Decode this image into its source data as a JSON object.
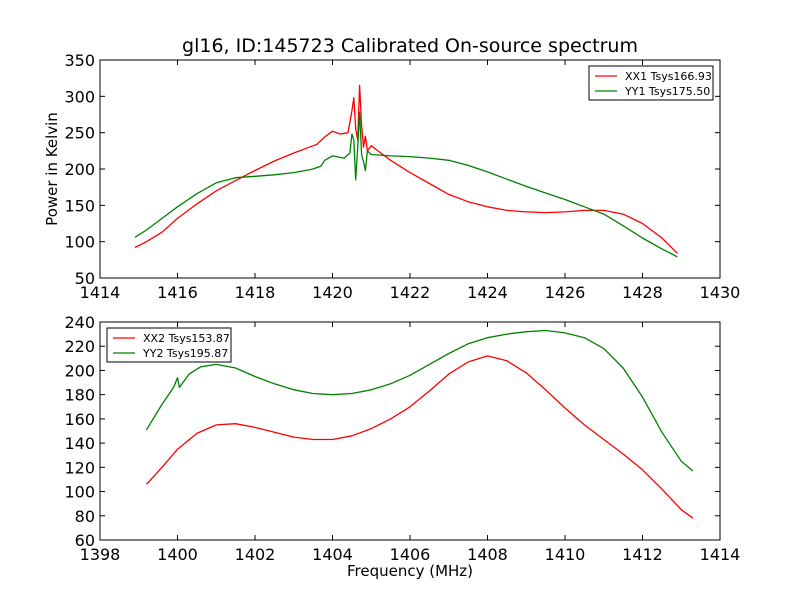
{
  "chart_data": [
    {
      "type": "line",
      "title": "gl16, ID:145723 Calibrated On-source spectrum",
      "xlabel": "",
      "ylabel": "Power in Kelvin",
      "xlim": [
        1414,
        1430
      ],
      "ylim": [
        50,
        350
      ],
      "xticks": [
        1414,
        1416,
        1418,
        1420,
        1422,
        1424,
        1426,
        1428,
        1430
      ],
      "yticks": [
        50,
        100,
        150,
        200,
        250,
        300,
        350
      ],
      "legend_position": "top-right",
      "series": [
        {
          "name": "XX1 Tsys166.93",
          "color": "#ff0000",
          "points": [
            [
              1414.9,
              92
            ],
            [
              1415.2,
              100
            ],
            [
              1415.6,
              113
            ],
            [
              1416.0,
              132
            ],
            [
              1416.5,
              152
            ],
            [
              1417.0,
              170
            ],
            [
              1417.5,
              184
            ],
            [
              1418.0,
              198
            ],
            [
              1418.5,
              211
            ],
            [
              1419.0,
              222
            ],
            [
              1419.4,
              230
            ],
            [
              1419.6,
              234
            ],
            [
              1419.8,
              244
            ],
            [
              1420.0,
              252
            ],
            [
              1420.2,
              248
            ],
            [
              1420.4,
              250
            ],
            [
              1420.5,
              280
            ],
            [
              1420.55,
              298
            ],
            [
              1420.6,
              255
            ],
            [
              1420.65,
              240
            ],
            [
              1420.7,
              315
            ],
            [
              1420.75,
              260
            ],
            [
              1420.8,
              230
            ],
            [
              1420.85,
              245
            ],
            [
              1420.9,
              225
            ],
            [
              1421.0,
              232
            ],
            [
              1421.2,
              224
            ],
            [
              1421.5,
              212
            ],
            [
              1422.0,
              195
            ],
            [
              1422.5,
              180
            ],
            [
              1423.0,
              165
            ],
            [
              1423.5,
              155
            ],
            [
              1424.0,
              148
            ],
            [
              1424.5,
              143
            ],
            [
              1425.0,
              141
            ],
            [
              1425.5,
              140
            ],
            [
              1426.0,
              141
            ],
            [
              1426.5,
              143
            ],
            [
              1427.0,
              143
            ],
            [
              1427.5,
              138
            ],
            [
              1428.0,
              125
            ],
            [
              1428.5,
              105
            ],
            [
              1428.9,
              84
            ]
          ]
        },
        {
          "name": "YY1 Tsys175.50",
          "color": "#008000",
          "points": [
            [
              1414.9,
              106
            ],
            [
              1415.2,
              116
            ],
            [
              1415.6,
              132
            ],
            [
              1416.0,
              148
            ],
            [
              1416.5,
              166
            ],
            [
              1417.0,
              181
            ],
            [
              1417.5,
              188
            ],
            [
              1418.0,
              190
            ],
            [
              1418.5,
              192
            ],
            [
              1419.0,
              195
            ],
            [
              1419.5,
              200
            ],
            [
              1419.7,
              204
            ],
            [
              1419.8,
              212
            ],
            [
              1420.0,
              218
            ],
            [
              1420.3,
              215
            ],
            [
              1420.45,
              222
            ],
            [
              1420.5,
              248
            ],
            [
              1420.55,
              240
            ],
            [
              1420.6,
              185
            ],
            [
              1420.65,
              230
            ],
            [
              1420.7,
              278
            ],
            [
              1420.75,
              220
            ],
            [
              1420.8,
              210
            ],
            [
              1420.85,
              198
            ],
            [
              1420.9,
              225
            ],
            [
              1421.0,
              220
            ],
            [
              1421.5,
              218
            ],
            [
              1422.0,
              217
            ],
            [
              1422.5,
              215
            ],
            [
              1423.0,
              212
            ],
            [
              1423.5,
              205
            ],
            [
              1424.0,
              196
            ],
            [
              1424.5,
              186
            ],
            [
              1425.0,
              176
            ],
            [
              1425.5,
              167
            ],
            [
              1426.0,
              158
            ],
            [
              1426.5,
              148
            ],
            [
              1427.0,
              138
            ],
            [
              1427.5,
              122
            ],
            [
              1428.0,
              105
            ],
            [
              1428.5,
              90
            ],
            [
              1428.9,
              79
            ]
          ]
        }
      ]
    },
    {
      "type": "line",
      "title": "",
      "xlabel": "Frequency (MHz)",
      "ylabel": "",
      "xlim": [
        1398,
        1414
      ],
      "ylim": [
        60,
        240
      ],
      "xticks": [
        1398,
        1400,
        1402,
        1404,
        1406,
        1408,
        1410,
        1412,
        1414
      ],
      "yticks": [
        60,
        80,
        100,
        120,
        140,
        160,
        180,
        200,
        220,
        240
      ],
      "legend_position": "top-left",
      "series": [
        {
          "name": "XX2 Tsys153.87",
          "color": "#ff0000",
          "points": [
            [
              1399.2,
              106
            ],
            [
              1399.6,
              120
            ],
            [
              1400.0,
              135
            ],
            [
              1400.5,
              148
            ],
            [
              1401.0,
              155
            ],
            [
              1401.5,
              156
            ],
            [
              1402.0,
              153
            ],
            [
              1402.5,
              149
            ],
            [
              1403.0,
              145
            ],
            [
              1403.5,
              143
            ],
            [
              1404.0,
              143
            ],
            [
              1404.5,
              146
            ],
            [
              1405.0,
              152
            ],
            [
              1405.5,
              160
            ],
            [
              1406.0,
              170
            ],
            [
              1406.5,
              183
            ],
            [
              1407.0,
              197
            ],
            [
              1407.5,
              207
            ],
            [
              1408.0,
              212
            ],
            [
              1408.5,
              208
            ],
            [
              1409.0,
              198
            ],
            [
              1409.5,
              184
            ],
            [
              1410.0,
              169
            ],
            [
              1410.5,
              155
            ],
            [
              1411.0,
              143
            ],
            [
              1411.5,
              131
            ],
            [
              1412.0,
              118
            ],
            [
              1412.5,
              102
            ],
            [
              1413.0,
              85
            ],
            [
              1413.3,
              78
            ]
          ]
        },
        {
          "name": "YY2 Tsys195.87",
          "color": "#008000",
          "points": [
            [
              1399.2,
              151
            ],
            [
              1399.6,
              172
            ],
            [
              1399.9,
              186
            ],
            [
              1400.0,
              194
            ],
            [
              1400.05,
              186
            ],
            [
              1400.3,
              197
            ],
            [
              1400.6,
              203
            ],
            [
              1401.0,
              205
            ],
            [
              1401.5,
              202
            ],
            [
              1402.0,
              195
            ],
            [
              1402.5,
              189
            ],
            [
              1403.0,
              184
            ],
            [
              1403.5,
              181
            ],
            [
              1404.0,
              180
            ],
            [
              1404.5,
              181
            ],
            [
              1405.0,
              184
            ],
            [
              1405.5,
              189
            ],
            [
              1406.0,
              196
            ],
            [
              1406.5,
              205
            ],
            [
              1407.0,
              214
            ],
            [
              1407.5,
              222
            ],
            [
              1408.0,
              227
            ],
            [
              1408.5,
              230
            ],
            [
              1409.0,
              232
            ],
            [
              1409.5,
              233
            ],
            [
              1410.0,
              231
            ],
            [
              1410.5,
              227
            ],
            [
              1411.0,
              218
            ],
            [
              1411.5,
              202
            ],
            [
              1412.0,
              178
            ],
            [
              1412.5,
              149
            ],
            [
              1413.0,
              125
            ],
            [
              1413.3,
              117
            ]
          ]
        }
      ]
    }
  ]
}
